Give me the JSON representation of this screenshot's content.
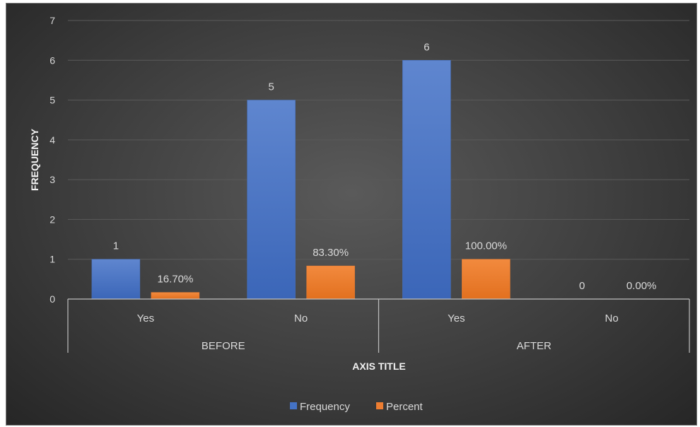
{
  "chart_data": {
    "type": "bar",
    "title": "",
    "ylabel": "FREQUENCY",
    "xlabel": "AXIS TITLE",
    "ylim": [
      0,
      7
    ],
    "yticks": [
      "0",
      "1",
      "2",
      "3",
      "4",
      "5",
      "6",
      "7"
    ],
    "categories": [
      "Yes",
      "No",
      "Yes",
      "No"
    ],
    "groups": [
      {
        "name": "BEFORE",
        "span": [
          0,
          1
        ]
      },
      {
        "name": "AFTER",
        "span": [
          2,
          3
        ]
      }
    ],
    "series": [
      {
        "name": "Frequency",
        "color": "#4472c4",
        "values": [
          1,
          5,
          6,
          0
        ],
        "labels": [
          "1",
          "5",
          "6",
          "0"
        ]
      },
      {
        "name": "Percent",
        "color": "#ed7d31",
        "values": [
          0.167,
          0.833,
          1.0,
          0.0
        ],
        "labels": [
          "16.70%",
          "83.30%",
          "100.00%",
          "0.00%"
        ]
      }
    ],
    "grid": true,
    "legend_position": "bottom"
  },
  "colors": {
    "background": "#3a3a3a",
    "gridline": "#5a5a5a",
    "axis_line": "#bfbfbf",
    "text": "#d9d9d9"
  }
}
